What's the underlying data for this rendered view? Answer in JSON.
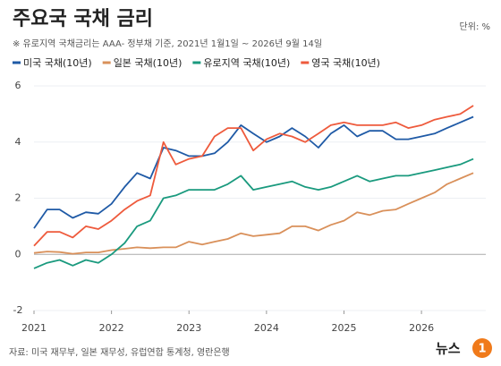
{
  "chart_data": {
    "type": "line",
    "title": "주요국 국채 금리",
    "subtitle": "※ 유로지역 국채금리는 AAA- 정부채 기준,  2021년 1월1일 ~ 2026년 9월 14일",
    "unit": "단위: %",
    "source": "자료: 미국 재무부, 일본 재무성, 유럽연합 통계청, 영란은행",
    "logo": "뉴스",
    "logo_mark": "1",
    "x": [
      2021.0,
      2021.17,
      2021.33,
      2021.5,
      2021.67,
      2021.83,
      2022.0,
      2022.17,
      2022.33,
      2022.5,
      2022.67,
      2022.83,
      2023.0,
      2023.17,
      2023.33,
      2023.5,
      2023.67,
      2023.83,
      2024.0,
      2024.17,
      2024.33,
      2024.5,
      2024.67,
      2024.83,
      2025.0,
      2025.17,
      2025.33,
      2025.5,
      2025.67,
      2025.83,
      2026.0,
      2026.17,
      2026.33,
      2026.5,
      2026.67
    ],
    "series": [
      {
        "name": "미국 국채(10년)",
        "color": "#1f5aa6",
        "values": [
          0.93,
          1.6,
          1.6,
          1.3,
          1.5,
          1.45,
          1.8,
          2.4,
          2.9,
          2.7,
          3.8,
          3.7,
          3.5,
          3.5,
          3.6,
          4.0,
          4.6,
          4.3,
          4.0,
          4.2,
          4.5,
          4.2,
          3.8,
          4.3,
          4.6,
          4.2,
          4.4,
          4.4,
          4.1,
          4.1,
          4.2,
          4.3,
          4.5,
          4.7,
          4.9
        ]
      },
      {
        "name": "일본 국채(10년)",
        "color": "#d9905a",
        "values": [
          0.05,
          0.1,
          0.08,
          0.02,
          0.07,
          0.07,
          0.15,
          0.2,
          0.25,
          0.22,
          0.25,
          0.25,
          0.45,
          0.35,
          0.45,
          0.55,
          0.75,
          0.65,
          0.7,
          0.75,
          1.0,
          1.0,
          0.85,
          1.05,
          1.2,
          1.5,
          1.4,
          1.55,
          1.6,
          1.8,
          2.0,
          2.2,
          2.5,
          2.7,
          2.9
        ]
      },
      {
        "name": "유로지역 국채(10년)",
        "color": "#1a9a7e",
        "values": [
          -0.5,
          -0.3,
          -0.2,
          -0.4,
          -0.2,
          -0.3,
          0.0,
          0.4,
          1.0,
          1.2,
          2.0,
          2.1,
          2.3,
          2.3,
          2.3,
          2.5,
          2.8,
          2.3,
          2.4,
          2.5,
          2.6,
          2.4,
          2.3,
          2.4,
          2.6,
          2.8,
          2.6,
          2.7,
          2.8,
          2.8,
          2.9,
          3.0,
          3.1,
          3.2,
          3.4
        ]
      },
      {
        "name": "영국 국채(10년)",
        "color": "#ee5a3c",
        "values": [
          0.3,
          0.8,
          0.8,
          0.6,
          1.0,
          0.9,
          1.2,
          1.6,
          1.9,
          2.1,
          4.0,
          3.2,
          3.4,
          3.5,
          4.2,
          4.5,
          4.5,
          3.7,
          4.1,
          4.3,
          4.2,
          4.0,
          4.3,
          4.6,
          4.7,
          4.6,
          4.6,
          4.6,
          4.7,
          4.5,
          4.6,
          4.8,
          4.9,
          5.0,
          5.3
        ]
      }
    ],
    "xlim": [
      2021,
      2026.83
    ],
    "xticks": [
      2021,
      2022,
      2023,
      2024,
      2025,
      2026
    ],
    "ylim": [
      -2,
      6
    ],
    "yticks": [
      -2,
      0,
      2,
      4,
      6
    ],
    "grid": true
  }
}
